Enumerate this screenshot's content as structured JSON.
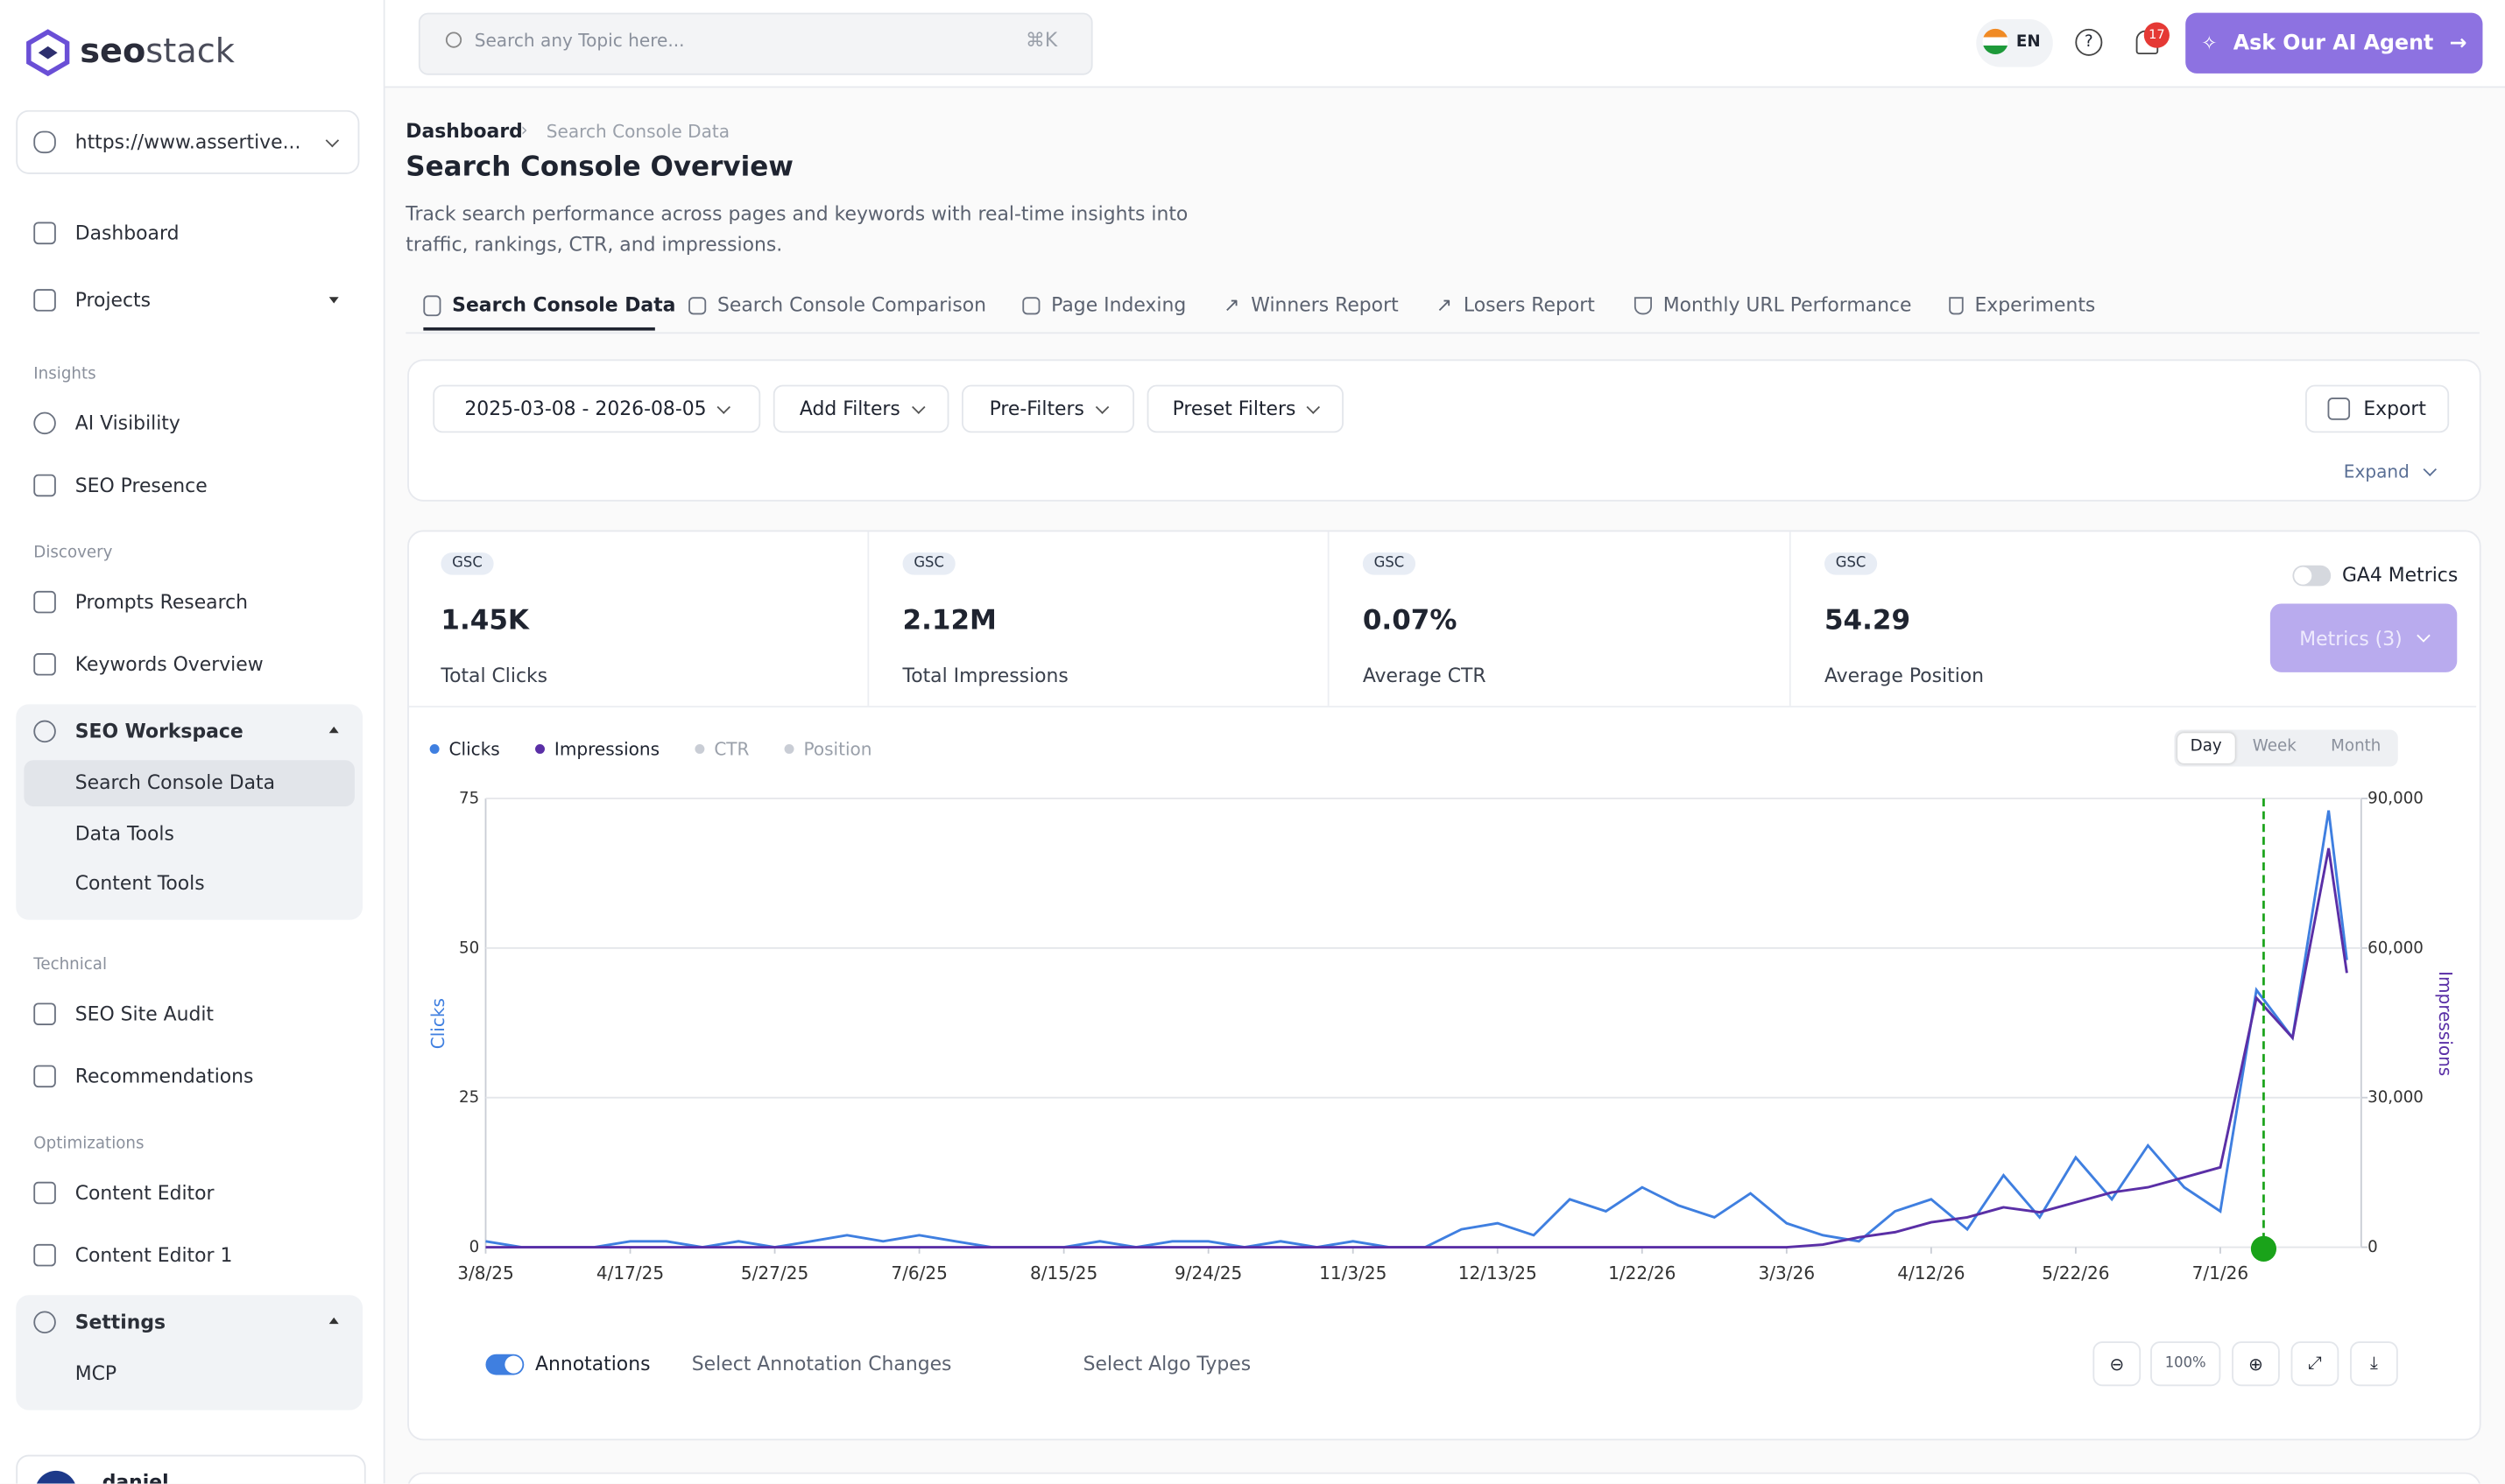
{
  "sidebar": {
    "logo_a": "seo",
    "logo_b": "stack",
    "site": "https://www.assertive...",
    "top": [
      "Dashboard",
      "Projects"
    ],
    "sections": [
      {
        "title": "Insights",
        "items": [
          "AI Visibility",
          "SEO Presence"
        ]
      },
      {
        "title": "Discovery",
        "items": [
          "Prompts Research",
          "Keywords Overview"
        ]
      }
    ],
    "workspace": {
      "title": "SEO Workspace",
      "items": [
        "Search Console Data",
        "Data Tools",
        "Content Tools"
      ]
    },
    "sections2": [
      {
        "title": "Technical",
        "items": [
          "SEO Site Audit",
          "Recommendations"
        ]
      },
      {
        "title": "Optimizations",
        "items": [
          "Content Editor",
          "Content Editor 1"
        ]
      }
    ],
    "settings": {
      "title": "Settings",
      "items": [
        "MCP"
      ]
    },
    "user": "daniel"
  },
  "topbar": {
    "search": "Search any Topic here...",
    "shortcut": "⌘K",
    "lang": "EN",
    "notifications": 17,
    "cta": "Ask Our AI Agent"
  },
  "breadcrumb": [
    "Dashboard",
    "Search Console Data"
  ],
  "title": "Search Console Overview",
  "description": "Track search performance across pages and keywords with real-time insights into traffic, rankings, CTR, and impressions.",
  "tabs": [
    "Search Console Data",
    "Search Console Comparison",
    "Page Indexing",
    "Winners Report",
    "Losers Report",
    "Monthly URL Performance",
    "Experiments"
  ],
  "filters": {
    "date_range": "2025-03-08 - 2026-08-05",
    "buttons": [
      "Add Filters",
      "Pre-Filters",
      "Preset Filters"
    ],
    "export": "Export",
    "expand": "Expand"
  },
  "metrics": [
    {
      "tag": "GSC",
      "value": "1.45K",
      "label": "Total Clicks"
    },
    {
      "tag": "GSC",
      "value": "2.12M",
      "label": "Total Impressions"
    },
    {
      "tag": "GSC",
      "value": "0.07%",
      "label": "Average CTR"
    },
    {
      "tag": "GSC",
      "value": "54.29",
      "label": "Average Position"
    }
  ],
  "ga4": "GA4 Metrics",
  "metrics_button": "Metrics (3)",
  "chart_controls": {
    "periods": [
      "Day",
      "Week",
      "Month"
    ],
    "annotations": "Annotations",
    "annotation_select": "Select Annotation Changes",
    "algo_select": "Select Algo Types",
    "zoom": "100%"
  },
  "chart_data": {
    "type": "line",
    "ylabel": "Clicks",
    "y2label": "Impressions",
    "x": [
      "2025-03-08",
      "2025-03-18",
      "2025-03-28",
      "2025-04-07",
      "2025-04-17",
      "2025-04-27",
      "2025-05-07",
      "2025-05-17",
      "2025-05-27",
      "2025-06-06",
      "2025-06-16",
      "2025-06-26",
      "2025-07-06",
      "2025-07-16",
      "2025-07-26",
      "2025-08-05",
      "2025-08-15",
      "2025-08-25",
      "2025-09-04",
      "2025-09-14",
      "2025-09-24",
      "2025-10-04",
      "2025-10-14",
      "2025-10-24",
      "2025-11-03",
      "2025-11-13",
      "2025-11-23",
      "2025-12-03",
      "2025-12-13",
      "2025-12-23",
      "2026-01-02",
      "2026-01-12",
      "2026-01-22",
      "2026-02-01",
      "2026-02-11",
      "2026-02-21",
      "2026-03-03",
      "2026-03-13",
      "2026-03-23",
      "2026-04-02",
      "2026-04-12",
      "2026-04-22",
      "2026-05-02",
      "2026-05-12",
      "2026-05-22",
      "2026-06-01",
      "2026-06-11",
      "2026-06-21",
      "2026-07-01",
      "2026-07-11",
      "2026-07-21",
      "2026-07-31",
      "2026-08-05"
    ],
    "series": [
      {
        "name": "Clicks",
        "color": "#3f7fe0",
        "axis": "y",
        "values": [
          1,
          0,
          0,
          0,
          1,
          1,
          0,
          1,
          0,
          1,
          2,
          1,
          2,
          1,
          0,
          0,
          0,
          1,
          0,
          1,
          1,
          0,
          1,
          0,
          1,
          0,
          0,
          3,
          4,
          2,
          8,
          6,
          10,
          7,
          5,
          9,
          4,
          2,
          1,
          6,
          8,
          3,
          12,
          5,
          15,
          8,
          17,
          10,
          6,
          43,
          35,
          73,
          48
        ]
      },
      {
        "name": "Impressions",
        "color": "#5a2fa6",
        "axis": "y2",
        "values": [
          0,
          0,
          0,
          0,
          0,
          0,
          0,
          0,
          0,
          0,
          0,
          0,
          0,
          0,
          0,
          0,
          0,
          0,
          0,
          0,
          0,
          0,
          0,
          0,
          0,
          0,
          0,
          0,
          0,
          0,
          0,
          0,
          0,
          0,
          0,
          0,
          0,
          500,
          2000,
          3000,
          5000,
          6000,
          8000,
          7000,
          9000,
          11000,
          12000,
          14000,
          16000,
          50000,
          42000,
          80000,
          55000
        ]
      }
    ],
    "inactive_series": [
      {
        "name": "CTR",
        "color": "#c9cdd5"
      },
      {
        "name": "Position",
        "color": "#c9cdd5"
      }
    ],
    "xlim": [
      "2025-03-08",
      "2026-08-09"
    ],
    "xticks": [
      {
        "value": "2025-03-08",
        "label": "3/8/25"
      },
      {
        "value": "2025-04-17",
        "label": "4/17/25"
      },
      {
        "value": "2025-05-27",
        "label": "5/27/25"
      },
      {
        "value": "2025-07-06",
        "label": "7/6/25"
      },
      {
        "value": "2025-08-15",
        "label": "8/15/25"
      },
      {
        "value": "2025-09-24",
        "label": "9/24/25"
      },
      {
        "value": "2025-11-03",
        "label": "11/3/25"
      },
      {
        "value": "2025-12-13",
        "label": "12/13/25"
      },
      {
        "value": "2026-01-22",
        "label": "1/22/26"
      },
      {
        "value": "2026-03-03",
        "label": "3/3/26"
      },
      {
        "value": "2026-04-12",
        "label": "4/12/26"
      },
      {
        "value": "2026-05-22",
        "label": "5/22/26"
      },
      {
        "value": "2026-07-01",
        "label": "7/1/26"
      }
    ],
    "ylim": [
      0,
      75
    ],
    "yticks": [
      0,
      25,
      50,
      75
    ],
    "y2lim": [
      0,
      90000
    ],
    "y2ticks": [
      0,
      {
        "value": 30000,
        "label": "30,000"
      },
      {
        "value": 60000,
        "label": "60,000"
      },
      {
        "value": 90000,
        "label": "90,000"
      }
    ],
    "grid": true,
    "annotation_x": "2026-07-13",
    "annotation_color": "#1aa31a"
  }
}
